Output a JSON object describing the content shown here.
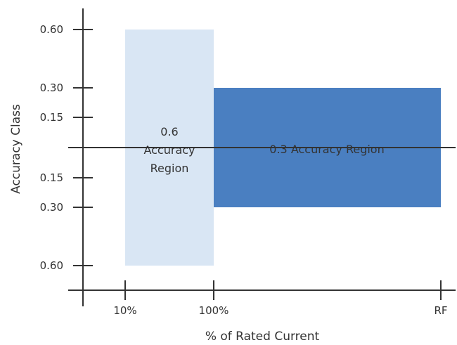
{
  "chart_data": {
    "type": "region",
    "title": "",
    "xlabel": "% of Rated Current",
    "ylabel": "Accuracy Class",
    "x_ticks": [
      "10%",
      "100%",
      "RF"
    ],
    "y_ticks_upper": [
      "0.60",
      "0.30",
      "0.15"
    ],
    "y_ticks_lower": [
      "0.15",
      "0.30",
      "0.60"
    ],
    "grid": false,
    "legend": "none",
    "regions": [
      {
        "label_lines": [
          "0.6",
          "Accuracy",
          "Region"
        ],
        "x_from": "10%",
        "x_to": "100%",
        "accuracy_limit": 0.6,
        "color": "#d9e6f4"
      },
      {
        "label_lines": [
          "0.3 Accuracy Region"
        ],
        "x_from": "100%",
        "x_to": "RF",
        "accuracy_limit": 0.3,
        "color": "#4a7fc1"
      }
    ],
    "colors": {
      "axis": "#333333",
      "text_dark": "#333333",
      "text_light": "#ffffff"
    }
  }
}
